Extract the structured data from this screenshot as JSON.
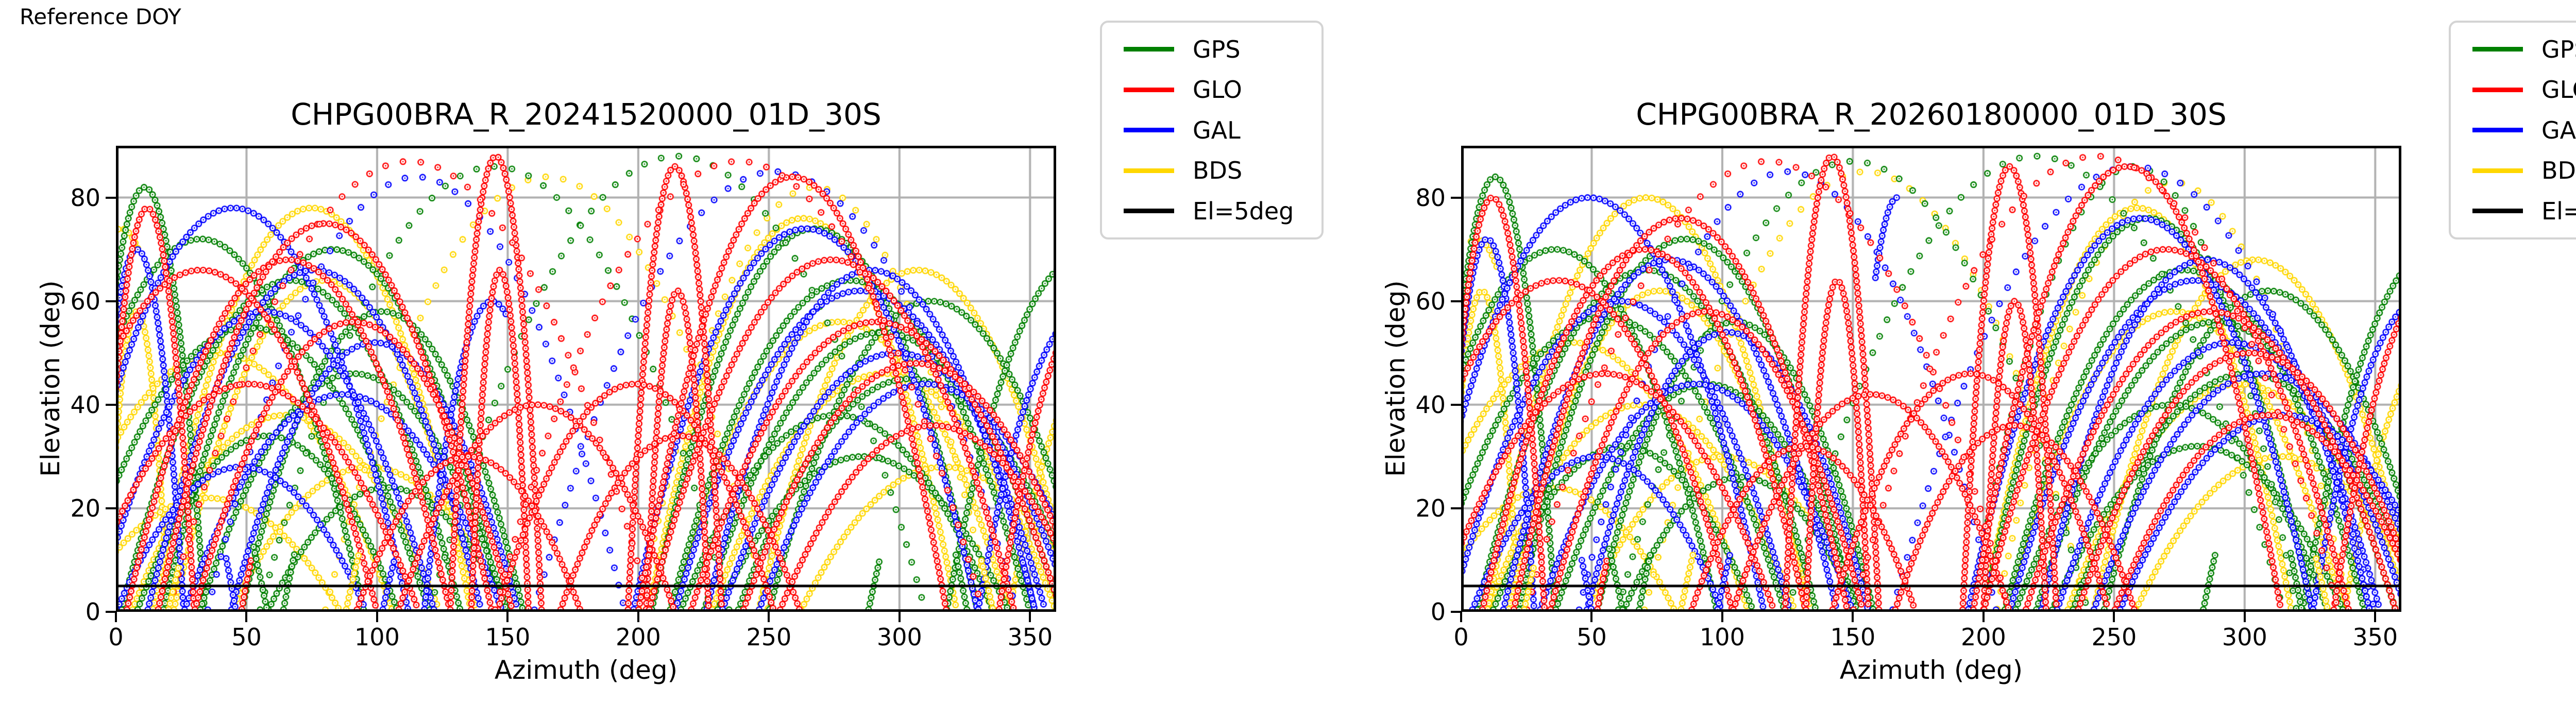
{
  "reference_label": "Reference DOY",
  "legend": {
    "entries": [
      {
        "label": "GPS",
        "color": "#008000"
      },
      {
        "label": "GLO",
        "color": "#ff0000"
      },
      {
        "label": "GAL",
        "color": "#0000ff"
      },
      {
        "label": "BDS",
        "color": "#ffd700"
      },
      {
        "label": "El=5deg",
        "color": "#000000"
      }
    ]
  },
  "style_colors": {
    "grid": "#b0b0b0",
    "spine": "#000000",
    "cutoff_line": "#000000",
    "legend_border": "#d4d4d4"
  },
  "chart_data": [
    {
      "type": "scatter",
      "title": "CHPG00BRA_R_20241520000_01D_30S",
      "xlabel": "Azimuth (deg)",
      "ylabel": "Elevation (deg)",
      "xlim": [
        0,
        360
      ],
      "ylim": [
        0,
        90
      ],
      "xticks": [
        0,
        50,
        100,
        150,
        200,
        250,
        300,
        350
      ],
      "yticks": [
        0,
        20,
        40,
        60,
        80
      ],
      "grid": true,
      "legend_position": "upper-right-outside",
      "elevation_cutoff_deg": 5,
      "series_groups": [
        "GPS",
        "GLO",
        "GAL",
        "BDS"
      ],
      "tracks_format": "[group_index, az_start_deg, az_end_deg, el_peak_deg, marker_spacing_mult, t_start, t_end]",
      "tracks": [
        [
          3,
          -4,
          20,
          58
        ],
        [
          3,
          -28,
          106,
          50
        ],
        [
          3,
          6,
          124,
          38
        ],
        [
          3,
          22,
          138,
          64
        ],
        [
          3,
          14,
          136,
          78
        ],
        [
          3,
          44,
          150,
          28
        ],
        [
          3,
          -16,
          86,
          22
        ],
        [
          3,
          212,
          342,
          56
        ],
        [
          3,
          228,
          360,
          46
        ],
        [
          3,
          246,
          368,
          66
        ],
        [
          3,
          204,
          322,
          76
        ],
        [
          3,
          262,
          372,
          28
        ],
        [
          3,
          80,
          250,
          84,
          3
        ],
        [
          3,
          200,
          335,
          82,
          3
        ],
        [
          3,
          342,
          420,
          52
        ],
        [
          3,
          -26,
          30,
          74,
          1,
          0.48,
          0.62
        ],
        [
          0,
          -12,
          34,
          82
        ],
        [
          0,
          -30,
          95,
          72
        ],
        [
          0,
          -18,
          120,
          55
        ],
        [
          0,
          2,
          132,
          64
        ],
        [
          0,
          18,
          148,
          70
        ],
        [
          0,
          32,
          150,
          46
        ],
        [
          0,
          8,
          108,
          34
        ],
        [
          0,
          48,
          156,
          58
        ],
        [
          0,
          58,
          150,
          24
        ],
        [
          0,
          205,
          330,
          74
        ],
        [
          0,
          212,
          350,
          64
        ],
        [
          0,
          225,
          362,
          54
        ],
        [
          0,
          238,
          370,
          45
        ],
        [
          0,
          250,
          374,
          60
        ],
        [
          0,
          230,
          342,
          30
        ],
        [
          0,
          216,
          336,
          38
        ],
        [
          0,
          318,
          420,
          68
        ],
        [
          0,
          55,
          235,
          86,
          3
        ],
        [
          0,
          120,
          310,
          88,
          3
        ],
        [
          2,
          -10,
          26,
          70
        ],
        [
          2,
          -22,
          112,
          78
        ],
        [
          2,
          -8,
          122,
          58
        ],
        [
          2,
          12,
          140,
          66
        ],
        [
          2,
          26,
          148,
          42
        ],
        [
          2,
          44,
          154,
          52
        ],
        [
          2,
          0,
          96,
          28
        ],
        [
          2,
          214,
          356,
          62
        ],
        [
          2,
          198,
          330,
          74
        ],
        [
          2,
          232,
          366,
          50
        ],
        [
          2,
          246,
          374,
          44
        ],
        [
          2,
          226,
          352,
          66
        ],
        [
          2,
          330,
          412,
          58
        ],
        [
          2,
          35,
          195,
          84,
          3
        ],
        [
          2,
          160,
          345,
          85,
          3
        ],
        [
          2,
          118,
          170,
          60,
          1,
          0,
          0.62
        ],
        [
          1,
          -6,
          30,
          78
        ],
        [
          1,
          -35,
          100,
          66
        ],
        [
          1,
          -14,
          116,
          44
        ],
        [
          1,
          4,
          128,
          68
        ],
        [
          1,
          16,
          144,
          75
        ],
        [
          1,
          30,
          152,
          56
        ],
        [
          1,
          128,
          163,
          88
        ],
        [
          1,
          136,
          158,
          66
        ],
        [
          1,
          196,
          232,
          86
        ],
        [
          1,
          203,
          227,
          62
        ],
        [
          1,
          108,
          214,
          40
        ],
        [
          1,
          146,
          252,
          44
        ],
        [
          1,
          92,
          178,
          30
        ],
        [
          1,
          170,
          262,
          34
        ],
        [
          1,
          204,
          344,
          68
        ],
        [
          1,
          220,
          362,
          56
        ],
        [
          1,
          200,
          318,
          84
        ],
        [
          1,
          240,
          372,
          48
        ],
        [
          1,
          338,
          416,
          62
        ],
        [
          1,
          20,
          205,
          87,
          3
        ],
        [
          1,
          145,
          332,
          87,
          3
        ],
        [
          1,
          254,
          372,
          36
        ],
        [
          0,
          64,
          168,
          70,
          1,
          0,
          0.045
        ],
        [
          3,
          88,
          190,
          60,
          1,
          0,
          0.05
        ],
        [
          2,
          102,
          200,
          56,
          1,
          0,
          0.05
        ],
        [
          1,
          48,
          136,
          62,
          1,
          0,
          0.045
        ],
        [
          0,
          228,
          326,
          64,
          1,
          0.955,
          1
        ],
        [
          3,
          244,
          336,
          52,
          1,
          0.95,
          1
        ],
        [
          2,
          258,
          352,
          50,
          1,
          0.95,
          1
        ],
        [
          1,
          276,
          368,
          58,
          1,
          0.955,
          1
        ],
        [
          0,
          -48,
          58,
          66,
          1,
          0.95,
          1
        ],
        [
          2,
          -38,
          46,
          60,
          1,
          0.955,
          1
        ],
        [
          3,
          20,
          90,
          40,
          1,
          0,
          0.06
        ],
        [
          0,
          288,
          382,
          56,
          1,
          0,
          0.05
        ]
      ]
    },
    {
      "type": "scatter",
      "title": "CHPG00BRA_R_20260180000_01D_30S",
      "xlabel": "Azimuth (deg)",
      "ylabel": "Elevation (deg)",
      "xlim": [
        0,
        360
      ],
      "ylim": [
        0,
        90
      ],
      "xticks": [
        0,
        50,
        100,
        150,
        200,
        250,
        300,
        350
      ],
      "yticks": [
        0,
        20,
        40,
        60,
        80
      ],
      "grid": true,
      "legend_position": "upper-right-outside",
      "elevation_cutoff_deg": 5,
      "series_groups": [
        "GPS",
        "GLO",
        "GAL",
        "BDS"
      ],
      "tracks_format": "[group_index, az_start_deg, az_end_deg, el_peak_deg, marker_spacing_mult, t_start, t_end]",
      "tracks": [
        [
          3,
          -6,
          22,
          62
        ],
        [
          3,
          -24,
          110,
          52
        ],
        [
          3,
          10,
          128,
          40
        ],
        [
          3,
          18,
          134,
          62
        ],
        [
          3,
          10,
          132,
          80
        ],
        [
          3,
          48,
          152,
          30
        ],
        [
          3,
          -12,
          82,
          24
        ],
        [
          3,
          208,
          338,
          58
        ],
        [
          3,
          232,
          364,
          44
        ],
        [
          3,
          242,
          366,
          68
        ],
        [
          3,
          200,
          318,
          78
        ],
        [
          3,
          258,
          370,
          30
        ],
        [
          3,
          70,
          240,
          85,
          3
        ],
        [
          3,
          205,
          340,
          83,
          3
        ],
        [
          3,
          338,
          416,
          54
        ],
        [
          3,
          -22,
          34,
          72,
          1,
          0.46,
          0.64
        ],
        [
          0,
          -10,
          36,
          84
        ],
        [
          0,
          -26,
          98,
          70
        ],
        [
          0,
          -14,
          124,
          57
        ],
        [
          0,
          6,
          136,
          66
        ],
        [
          0,
          22,
          150,
          72
        ],
        [
          0,
          36,
          152,
          44
        ],
        [
          0,
          12,
          112,
          32
        ],
        [
          0,
          52,
          158,
          56
        ],
        [
          0,
          62,
          152,
          26
        ],
        [
          0,
          200,
          326,
          76
        ],
        [
          0,
          208,
          346,
          66
        ],
        [
          0,
          220,
          358,
          56
        ],
        [
          0,
          234,
          368,
          46
        ],
        [
          0,
          246,
          372,
          62
        ],
        [
          0,
          226,
          338,
          32
        ],
        [
          0,
          212,
          332,
          40
        ],
        [
          0,
          322,
          424,
          70
        ],
        [
          0,
          60,
          240,
          87,
          3
        ],
        [
          0,
          195,
          320,
          86,
          3
        ],
        [
          0,
          125,
          315,
          88,
          3
        ],
        [
          2,
          -8,
          28,
          72
        ],
        [
          2,
          -18,
          116,
          80
        ],
        [
          2,
          -4,
          126,
          60
        ],
        [
          2,
          16,
          144,
          68
        ],
        [
          2,
          30,
          150,
          44
        ],
        [
          2,
          48,
          156,
          54
        ],
        [
          2,
          4,
          100,
          30
        ],
        [
          2,
          210,
          352,
          64
        ],
        [
          2,
          194,
          326,
          76
        ],
        [
          2,
          228,
          362,
          52
        ],
        [
          2,
          242,
          372,
          46
        ],
        [
          2,
          222,
          348,
          68
        ],
        [
          2,
          326,
          408,
          60
        ],
        [
          2,
          45,
          205,
          85,
          3
        ],
        [
          2,
          165,
          350,
          86,
          3
        ],
        [
          2,
          148,
          186,
          80,
          1,
          0.28,
          0.5
        ],
        [
          2,
          252,
          378,
          38
        ],
        [
          1,
          -8,
          32,
          80
        ],
        [
          1,
          -30,
          104,
          64
        ],
        [
          1,
          -10,
          120,
          46
        ],
        [
          1,
          8,
          132,
          70
        ],
        [
          1,
          20,
          148,
          76
        ],
        [
          1,
          34,
          154,
          58
        ],
        [
          1,
          124,
          160,
          88
        ],
        [
          1,
          132,
          156,
          64
        ],
        [
          1,
          192,
          228,
          86
        ],
        [
          1,
          200,
          224,
          60
        ],
        [
          1,
          104,
          210,
          42
        ],
        [
          1,
          142,
          248,
          46
        ],
        [
          1,
          88,
          174,
          32
        ],
        [
          1,
          166,
          258,
          36
        ],
        [
          1,
          200,
          340,
          70
        ],
        [
          1,
          216,
          358,
          58
        ],
        [
          1,
          196,
          314,
          86
        ],
        [
          1,
          236,
          368,
          50
        ],
        [
          1,
          334,
          412,
          64
        ],
        [
          1,
          25,
          210,
          87,
          3
        ],
        [
          1,
          150,
          336,
          88,
          3
        ],
        [
          1,
          250,
          368,
          38
        ],
        [
          0,
          68,
          172,
          68,
          1,
          0,
          0.045
        ],
        [
          3,
          84,
          186,
          62,
          1,
          0,
          0.05
        ],
        [
          2,
          98,
          196,
          58,
          1,
          0,
          0.05
        ],
        [
          1,
          52,
          140,
          60,
          1,
          0,
          0.045
        ],
        [
          0,
          224,
          322,
          66,
          1,
          0.955,
          1
        ],
        [
          3,
          240,
          332,
          54,
          1,
          0.95,
          1
        ],
        [
          2,
          254,
          348,
          52,
          1,
          0.95,
          1
        ],
        [
          1,
          272,
          364,
          60,
          1,
          0.955,
          1
        ],
        [
          0,
          -44,
          62,
          64,
          1,
          0.95,
          1
        ],
        [
          2,
          -34,
          50,
          58,
          1,
          0.955,
          1
        ],
        [
          3,
          24,
          94,
          42,
          1,
          0,
          0.06
        ],
        [
          0,
          284,
          378,
          58,
          1,
          0,
          0.05
        ]
      ]
    }
  ]
}
